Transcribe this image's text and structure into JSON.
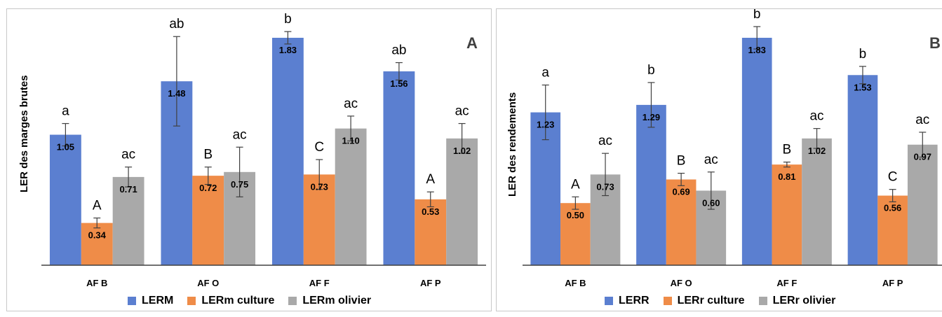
{
  "colors": {
    "series1": "#5b7fd0",
    "series2": "#ef8c48",
    "series3": "#a9a9a9"
  },
  "chart_data": [
    {
      "type": "bar",
      "panel_label": "A",
      "ylabel": "LER des marges brutes",
      "xlabel": "",
      "categories": [
        "AF B",
        "AF O",
        "AF F",
        "AF P"
      ],
      "ylim": [
        0,
        2.0
      ],
      "grid": false,
      "legend": "bottom",
      "series": [
        {
          "name": "LERM",
          "values": [
            1.05,
            1.48,
            1.83,
            1.56
          ],
          "errors": [
            0.09,
            0.36,
            0.05,
            0.07
          ],
          "letters": [
            "a",
            "ab",
            "b",
            "ab"
          ]
        },
        {
          "name": "LERm culture",
          "values": [
            0.34,
            0.72,
            0.73,
            0.53
          ],
          "errors": [
            0.04,
            0.07,
            0.12,
            0.06
          ],
          "letters": [
            "A",
            "B",
            "C",
            "A"
          ]
        },
        {
          "name": "LERm olivier",
          "values": [
            0.71,
            0.75,
            1.1,
            1.02
          ],
          "errors": [
            0.08,
            0.2,
            0.1,
            0.12
          ],
          "letters": [
            "ac",
            "ac",
            "ac",
            "ac"
          ]
        }
      ]
    },
    {
      "type": "bar",
      "panel_label": "B",
      "ylabel": "LER des rendements",
      "xlabel": "",
      "categories": [
        "AF B",
        "AF O",
        "AF F",
        "AF P"
      ],
      "ylim": [
        0,
        2.0
      ],
      "grid": false,
      "legend": "bottom",
      "series": [
        {
          "name": "LERR",
          "values": [
            1.23,
            1.29,
            1.83,
            1.53
          ],
          "errors": [
            0.22,
            0.18,
            0.09,
            0.07
          ],
          "letters": [
            "a",
            "b",
            "b",
            "b"
          ]
        },
        {
          "name": "LERr culture",
          "values": [
            0.5,
            0.69,
            0.81,
            0.56
          ],
          "errors": [
            0.05,
            0.05,
            0.02,
            0.05
          ],
          "letters": [
            "A",
            "B",
            "B",
            "C"
          ]
        },
        {
          "name": "LERr olivier",
          "values": [
            0.73,
            0.6,
            1.02,
            0.97
          ],
          "errors": [
            0.17,
            0.15,
            0.08,
            0.1
          ],
          "letters": [
            "ac",
            "ac",
            "ac",
            "ac"
          ]
        }
      ]
    }
  ]
}
